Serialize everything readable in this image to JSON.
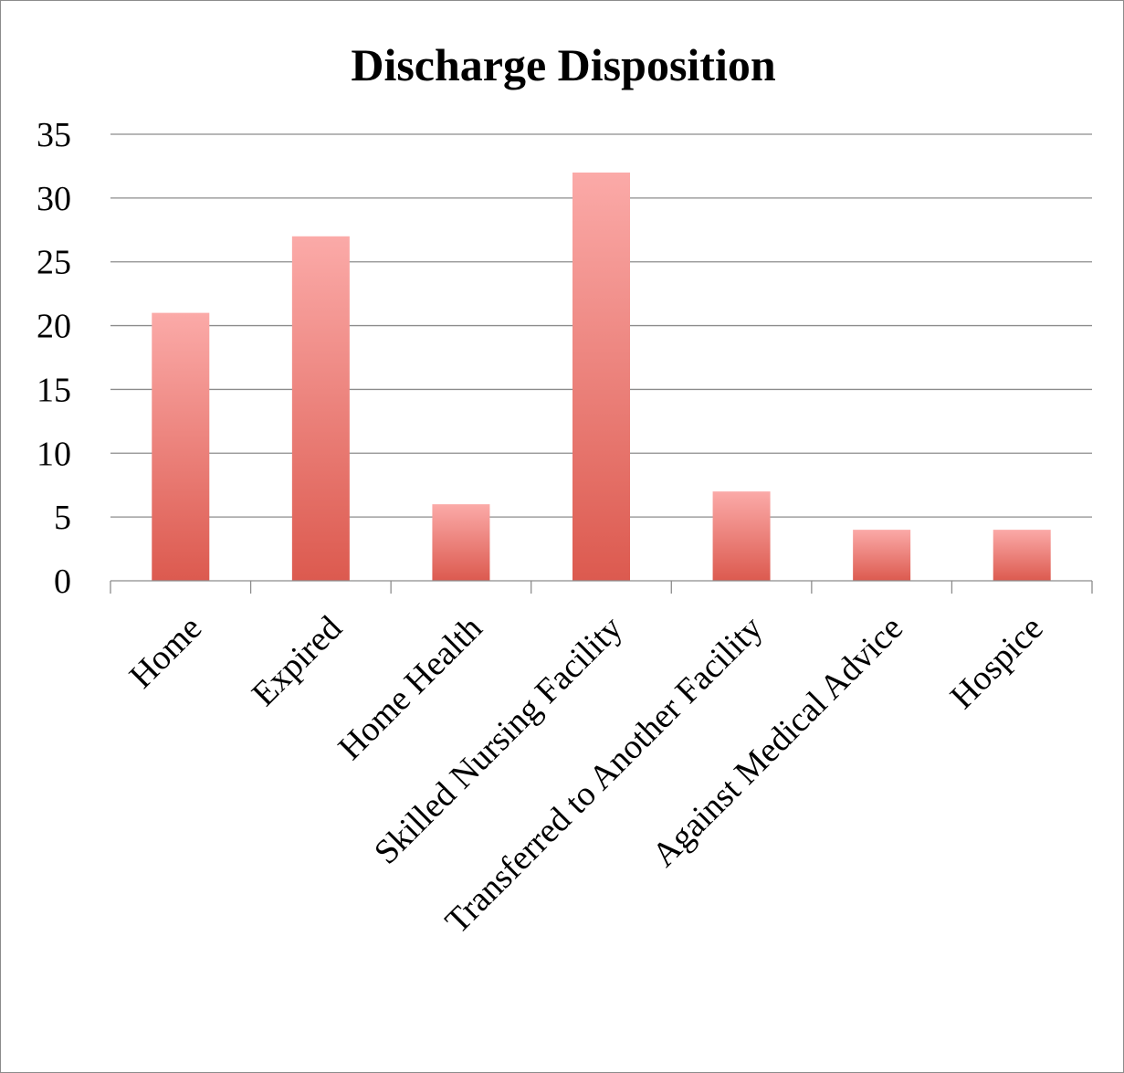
{
  "chart_data": {
    "type": "bar",
    "title": "Discharge Disposition",
    "xlabel": "",
    "ylabel": "",
    "categories": [
      "Home",
      "Expired",
      "Home Health",
      "Skilled Nursing Facility",
      "Transferred to Another Facility",
      "Against Medical Advice",
      "Hospice"
    ],
    "values": [
      21,
      27,
      6,
      32,
      7,
      4,
      4
    ],
    "ylim": [
      0,
      35
    ],
    "yticks": [
      0,
      5,
      10,
      15,
      20,
      25,
      30,
      35
    ],
    "grid": true,
    "legend": "none",
    "bar_color_top": "#fbaaa8",
    "bar_color_bottom": "#dc5a4f"
  }
}
